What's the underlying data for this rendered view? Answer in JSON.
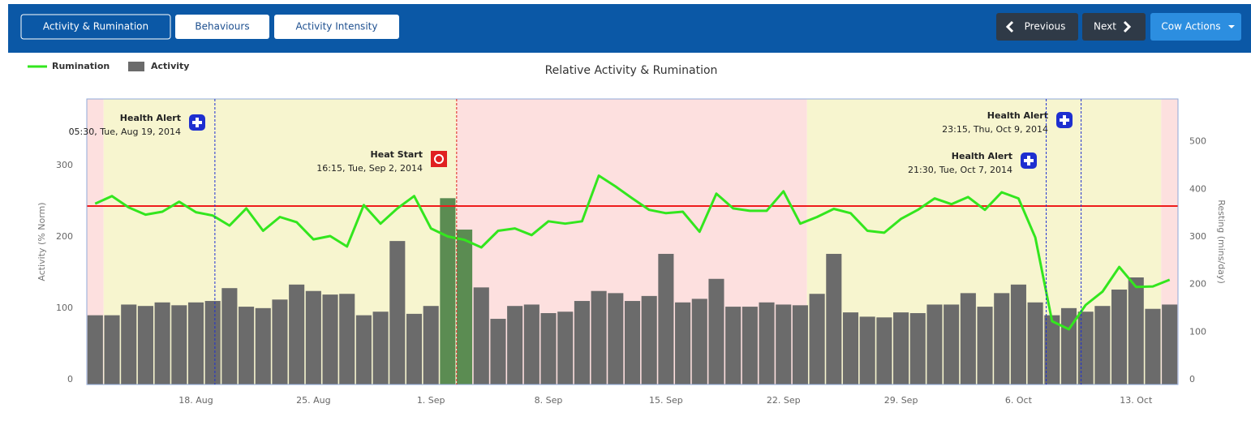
{
  "toolbar": {
    "tabs": [
      "Activity & Rumination",
      "Behaviours",
      "Activity Intensity"
    ],
    "previous": "Previous",
    "next": "Next",
    "actions": "Cow Actions"
  },
  "chart_data": {
    "type": "bar-line",
    "title": "Relative Activity & Rumination",
    "y_label": "Activity (% Norm)",
    "y2_label": "Resting (mins/day)",
    "categories": [
      null,
      null,
      null,
      null,
      null,
      null,
      "18. Aug",
      null,
      null,
      null,
      null,
      null,
      null,
      "25. Aug",
      null,
      null,
      null,
      null,
      null,
      null,
      "1. Sep",
      null,
      null,
      null,
      null,
      null,
      null,
      "8. Sep",
      null,
      null,
      null,
      null,
      null,
      null,
      "15. Sep",
      null,
      null,
      null,
      null,
      null,
      null,
      "22. Sep",
      null,
      null,
      null,
      null,
      null,
      null,
      "29. Sep",
      null,
      null,
      null,
      null,
      null,
      null,
      "6. Oct",
      null,
      null,
      null,
      null,
      null,
      null,
      "13. Oct",
      null,
      null
    ],
    "series": [
      {
        "name": "Rumination",
        "type": "line",
        "axis": "y2",
        "color": "#33e61e",
        "values": [
          380,
          396,
          372,
          357,
          363,
          384,
          362,
          355,
          334,
          370,
          323,
          352,
          341,
          305,
          312,
          290,
          377,
          338,
          370,
          396,
          328,
          311,
          304,
          288,
          323,
          328,
          314,
          343,
          338,
          343,
          439,
          416,
          391,
          367,
          360,
          363,
          321,
          401,
          370,
          365,
          365,
          406,
          338,
          352,
          369,
          360,
          323,
          319,
          348,
          367,
          391,
          379,
          394,
          367,
          404,
          391,
          309,
          133,
          116,
          167,
          195,
          247,
          205,
          206,
          220
        ]
      },
      {
        "name": "Activity",
        "type": "bar",
        "axis": "y",
        "color": "#6b6b6b",
        "values": [
          97,
          97,
          112,
          110,
          115,
          111,
          115,
          117,
          135,
          109,
          107,
          119,
          140,
          131,
          126,
          127,
          97,
          102,
          201,
          99,
          110,
          261,
          217,
          136,
          92,
          110,
          112,
          100,
          102,
          117,
          131,
          128,
          117,
          124,
          183,
          115,
          120,
          148,
          109,
          109,
          115,
          112,
          111,
          127,
          183,
          101,
          95,
          94,
          101,
          100,
          112,
          112,
          128,
          109,
          128,
          140,
          115,
          97,
          107,
          102,
          110,
          133,
          150,
          106,
          112
        ],
        "point_colors": [
          "#6b6b6b",
          "#6b6b6b",
          "#6b6b6b",
          "#6b6b6b",
          "#6b6b6b",
          "#6b6b6b",
          "#6b6b6b",
          "#6b6b6b",
          "#6b6b6b",
          "#6b6b6b",
          "#6b6b6b",
          "#6b6b6b",
          "#6b6b6b",
          "#6b6b6b",
          "#6b6b6b",
          "#6b6b6b",
          "#6b6b6b",
          "#6b6b6b",
          "#6b6b6b",
          "#6b6b6b",
          "#6b6b6b",
          "#5b8c52",
          "#5b8c52",
          "#6b6b6b",
          "#6b6b6b",
          "#6b6b6b",
          "#6b6b6b",
          "#6b6b6b",
          "#6b6b6b",
          "#6b6b6b",
          "#6b6b6b",
          "#6b6b6b",
          "#6b6b6b",
          "#6b6b6b",
          "#6b6b6b",
          "#6b6b6b",
          "#6b6b6b",
          "#6b6b6b",
          "#6b6b6b",
          "#6b6b6b",
          "#6b6b6b",
          "#6b6b6b",
          "#6b6b6b",
          "#6b6b6b",
          "#6b6b6b",
          "#6b6b6b",
          "#6b6b6b",
          "#6b6b6b",
          "#6b6b6b",
          "#6b6b6b",
          "#6b6b6b",
          "#6b6b6b",
          "#6b6b6b",
          "#6b6b6b",
          "#6b6b6b",
          "#6b6b6b",
          "#6b6b6b",
          "#6b6b6b",
          "#6b6b6b",
          "#6b6b6b",
          "#6b6b6b",
          "#6b6b6b",
          "#6b6b6b",
          "#6b6b6b",
          "#6b6b6b"
        ]
      }
    ],
    "ylim": [
      0,
      400
    ],
    "yticks": [
      0,
      100,
      200,
      300
    ],
    "y2lim": [
      0,
      600
    ],
    "y2ticks": [
      0,
      100,
      200,
      300,
      400,
      500
    ],
    "reference_line": {
      "value": 250,
      "color": "#ee1c1c"
    },
    "plot_bands": [
      {
        "from": -0.5,
        "to": 0.5,
        "color": "#fde0df"
      },
      {
        "from": 0.5,
        "to": 21.53,
        "color": "#f7f5cf"
      },
      {
        "from": 21.53,
        "to": 42.4,
        "color": "#fde0df"
      },
      {
        "from": 42.4,
        "to": 63.5,
        "color": "#f7f5cf"
      },
      {
        "from": 63.5,
        "to": 64.5,
        "color": "#fde0df"
      }
    ],
    "annotations": [
      {
        "title": "Health Alert",
        "time": "05:30, Tue, Aug 19, 2014",
        "x": 7.13,
        "kind": "health",
        "color": "#1e2fd0"
      },
      {
        "title": "Heat Start",
        "time": "16:15, Tue, Sep 2, 2014",
        "x": 21.53,
        "kind": "heat",
        "color": "#e02020"
      },
      {
        "title": "Health Alert",
        "time": "23:15, Thu, Oct 9, 2014",
        "x": 58.73,
        "kind": "health",
        "color": "#1e2fd0"
      },
      {
        "title": "Health Alert",
        "time": "21:30, Tue, Oct 7, 2014",
        "x": 56.65,
        "kind": "health",
        "color": "#1e2fd0"
      }
    ],
    "legend": "top-left"
  }
}
